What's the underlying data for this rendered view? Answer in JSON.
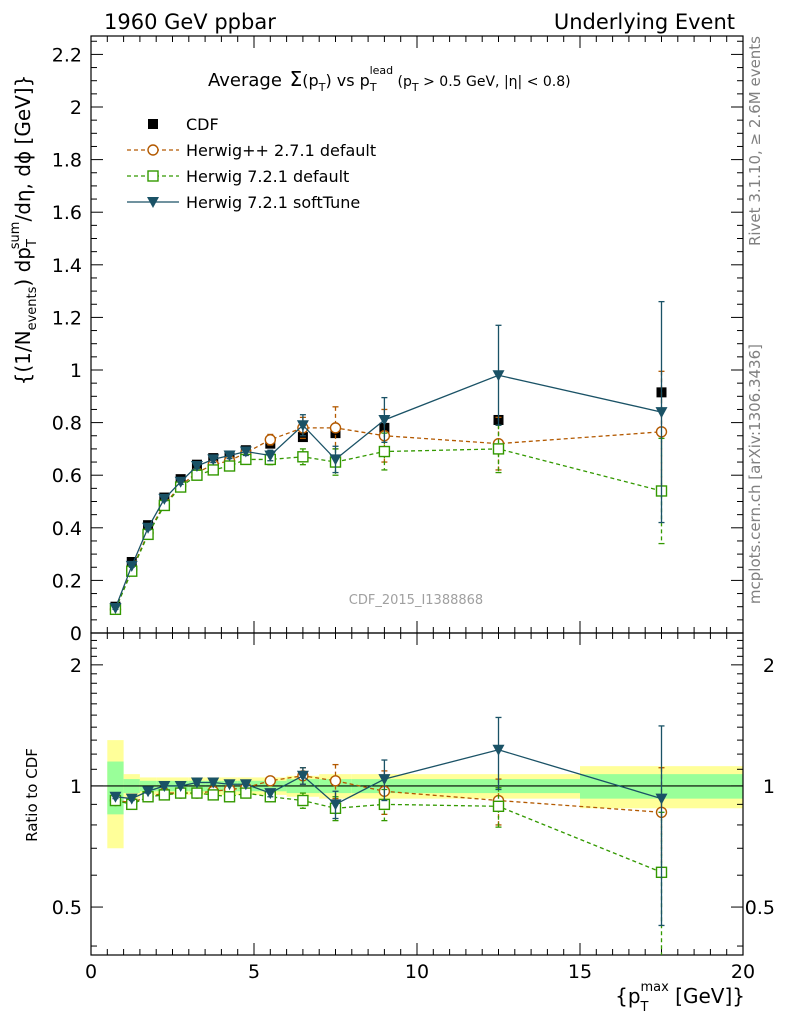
{
  "header": {
    "left": "1960 GeV ppbar",
    "right": "Underlying Event"
  },
  "side_labels": {
    "rivet": "Rivet 3.1.10, ≥ 2.6M events",
    "mcplots": "mcplots.cern.ch [arXiv:1306.3436]"
  },
  "watermark": "CDF_2015_I1388868",
  "chart_data": [
    {
      "type": "scatter",
      "title_parts": {
        "average": "Average",
        "sigma": "Σ",
        "pt_open": "(p",
        "sub_t1": "T",
        "pt_close": ")",
        "vs": " vs p",
        "lead": "lead",
        "sub_t2": "T",
        "cut_open": " (p",
        "sub_t3": "T",
        "cut_rest": " > 0.5 GeV, |η| < 0.8)"
      },
      "ylabel_parts": {
        "a": "{(1/N",
        "events": "events",
        "b": ") dp",
        "sum": "sum",
        "t": "T",
        "c": "/dη, dϕ [GeV]}"
      },
      "xlabel_parts": {
        "a": "{p",
        "max": "max",
        "t": "T",
        "b": " [GeV]}"
      },
      "xlim": [
        0,
        20
      ],
      "ylim": [
        0,
        2.27
      ],
      "xticks": [
        0,
        5,
        10,
        15,
        20
      ],
      "yticks": [
        0,
        0.2,
        0.4,
        0.6,
        0.8,
        1,
        1.2,
        1.4,
        1.6,
        1.8,
        2,
        2.2
      ],
      "ytick_labels": [
        "0",
        "0.2",
        "0.4",
        "0.6",
        "0.8",
        "1",
        "1.2",
        "1.4",
        "1.6",
        "1.8",
        "2",
        "2.2"
      ],
      "legend_position": "top-left",
      "series": [
        {
          "name": "CDF",
          "color": "#000000",
          "marker": "square-filled",
          "x": [
            0.75,
            1.25,
            1.75,
            2.25,
            2.75,
            3.25,
            3.75,
            4.25,
            4.75,
            5.5,
            6.5,
            7.5,
            9,
            12.5,
            17.5
          ],
          "y": [
            0.1,
            0.27,
            0.41,
            0.515,
            0.585,
            0.64,
            0.665,
            0.675,
            0.695,
            0.72,
            0.745,
            0.76,
            0.78,
            0.81,
            0.915
          ]
        },
        {
          "name": "Herwig++ 2.7.1 default",
          "color": "#b35900",
          "marker": "circle-open",
          "dashed": true,
          "x": [
            0.75,
            1.25,
            1.75,
            2.25,
            2.75,
            3.25,
            3.75,
            4.25,
            4.75,
            5.5,
            6.5,
            7.5,
            9,
            12.5,
            17.5
          ],
          "y": [
            0.09,
            0.24,
            0.38,
            0.49,
            0.56,
            0.61,
            0.64,
            0.655,
            0.685,
            0.735,
            0.78,
            0.78,
            0.75,
            0.72,
            0.765
          ],
          "err": [
            0.005,
            0.005,
            0.008,
            0.008,
            0.01,
            0.01,
            0.012,
            0.012,
            0.015,
            0.02,
            0.04,
            0.08,
            0.1,
            0.1,
            0.23
          ]
        },
        {
          "name": "Herwig 7.2.1 default",
          "color": "#339900",
          "marker": "square-open",
          "dashed": true,
          "x": [
            0.75,
            1.25,
            1.75,
            2.25,
            2.75,
            3.25,
            3.75,
            4.25,
            4.75,
            5.5,
            6.5,
            7.5,
            9,
            12.5,
            17.5
          ],
          "y": [
            0.09,
            0.235,
            0.375,
            0.485,
            0.555,
            0.6,
            0.62,
            0.635,
            0.66,
            0.66,
            0.67,
            0.65,
            0.69,
            0.7,
            0.54
          ],
          "err": [
            0.005,
            0.005,
            0.008,
            0.008,
            0.01,
            0.01,
            0.012,
            0.012,
            0.015,
            0.02,
            0.03,
            0.05,
            0.07,
            0.09,
            0.2
          ]
        },
        {
          "name": "Herwig 7.2.1 softTune",
          "color": "#1a5266",
          "marker": "triangle-down",
          "dashed": false,
          "x": [
            0.75,
            1.25,
            1.75,
            2.25,
            2.75,
            3.25,
            3.75,
            4.25,
            4.75,
            5.5,
            6.5,
            7.5,
            9,
            12.5,
            17.5
          ],
          "y": [
            0.095,
            0.255,
            0.4,
            0.51,
            0.575,
            0.635,
            0.66,
            0.675,
            0.69,
            0.675,
            0.79,
            0.66,
            0.81,
            0.98,
            0.84
          ],
          "err": [
            0.005,
            0.005,
            0.008,
            0.008,
            0.01,
            0.01,
            0.012,
            0.012,
            0.015,
            0.02,
            0.04,
            0.05,
            0.085,
            0.19,
            0.42
          ]
        }
      ]
    },
    {
      "type": "scatter",
      "ylabel": "Ratio to CDF",
      "xlim": [
        0,
        20
      ],
      "ylim": [
        0.38,
        2.4
      ],
      "ylog": true,
      "yticks": [
        0.5,
        1,
        2
      ],
      "ytick_labels": [
        "0.5",
        "1",
        "2"
      ],
      "xtick_labels": [
        "0",
        "5",
        "10",
        "15",
        "20"
      ],
      "reference_line": 1,
      "bands": {
        "x_edges": [
          0.5,
          1,
          1.5,
          2,
          2.5,
          3,
          3.5,
          4,
          4.5,
          5,
          6,
          7,
          8,
          10,
          15,
          20
        ],
        "stat_half_width": [
          0.15,
          0.04,
          0.03,
          0.03,
          0.03,
          0.03,
          0.03,
          0.03,
          0.03,
          0.03,
          0.04,
          0.04,
          0.04,
          0.04,
          0.07
        ],
        "total_half_width": [
          0.3,
          0.07,
          0.05,
          0.05,
          0.05,
          0.05,
          0.05,
          0.05,
          0.05,
          0.05,
          0.06,
          0.07,
          0.07,
          0.07,
          0.12
        ],
        "stat_color": "#99ff99",
        "total_color": "#ffff99"
      },
      "series": [
        {
          "name": "Herwig++ 2.7.1 default",
          "color": "#b35900",
          "marker": "circle-open",
          "dashed": true,
          "x": [
            0.75,
            1.25,
            1.75,
            2.25,
            2.75,
            3.25,
            3.75,
            4.25,
            4.75,
            5.5,
            6.5,
            7.5,
            9,
            12.5,
            17.5
          ],
          "y": [
            0.92,
            0.91,
            0.94,
            0.96,
            0.96,
            0.96,
            0.97,
            0.98,
            0.99,
            1.03,
            1.06,
            1.03,
            0.97,
            0.92,
            0.86
          ],
          "err": [
            0.01,
            0.01,
            0.01,
            0.01,
            0.01,
            0.01,
            0.01,
            0.01,
            0.01,
            0.02,
            0.05,
            0.1,
            0.12,
            0.12,
            0.25
          ]
        },
        {
          "name": "Herwig 7.2.1 default",
          "color": "#339900",
          "marker": "square-open",
          "dashed": true,
          "x": [
            0.75,
            1.25,
            1.75,
            2.25,
            2.75,
            3.25,
            3.75,
            4.25,
            4.75,
            5.5,
            6.5,
            7.5,
            9,
            12.5,
            17.5
          ],
          "y": [
            0.92,
            0.9,
            0.94,
            0.95,
            0.96,
            0.96,
            0.95,
            0.94,
            0.96,
            0.94,
            0.92,
            0.88,
            0.9,
            0.89,
            0.61
          ],
          "err": [
            0.01,
            0.01,
            0.01,
            0.01,
            0.01,
            0.01,
            0.01,
            0.01,
            0.01,
            0.02,
            0.04,
            0.06,
            0.08,
            0.1,
            0.25
          ]
        },
        {
          "name": "Herwig 7.2.1 softTune",
          "color": "#1a5266",
          "marker": "triangle-down",
          "dashed": false,
          "x": [
            0.75,
            1.25,
            1.75,
            2.25,
            2.75,
            3.25,
            3.75,
            4.25,
            4.75,
            5.5,
            6.5,
            7.5,
            9,
            12.5,
            17.5
          ],
          "y": [
            0.94,
            0.93,
            0.97,
            1.0,
            1.0,
            1.02,
            1.02,
            1.01,
            1.01,
            0.96,
            1.06,
            0.9,
            1.04,
            1.23,
            0.93
          ],
          "err": [
            0.01,
            0.01,
            0.01,
            0.01,
            0.01,
            0.01,
            0.01,
            0.01,
            0.01,
            0.02,
            0.05,
            0.07,
            0.12,
            0.25,
            0.48
          ]
        }
      ]
    }
  ]
}
